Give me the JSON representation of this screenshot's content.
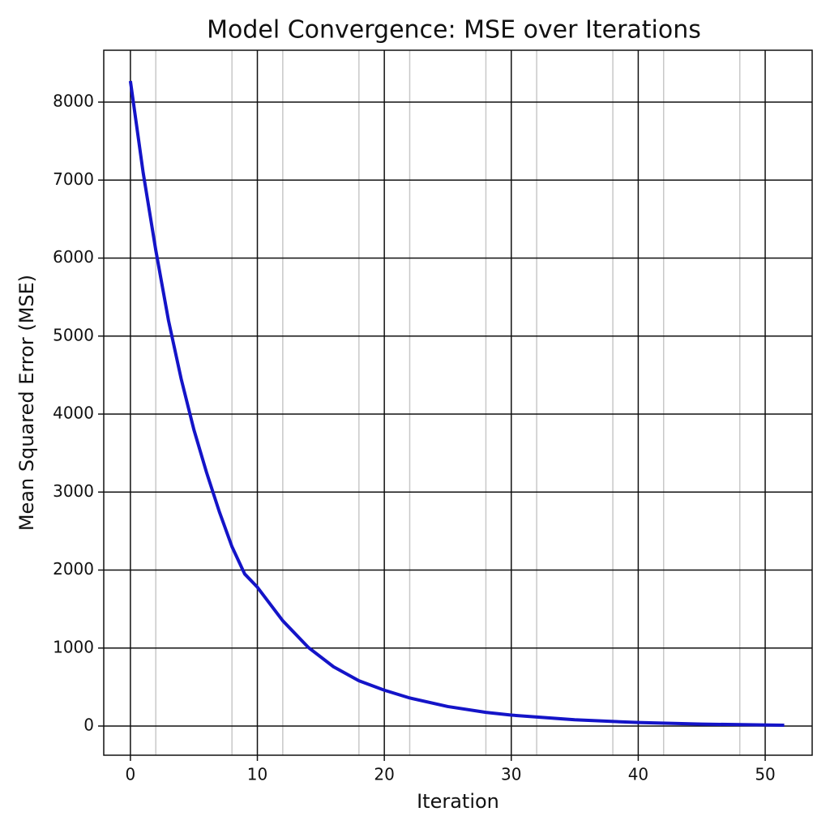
{
  "chart_data": {
    "type": "line",
    "title": "Model Convergence: MSE over Iterations",
    "xlabel": "Iteration",
    "ylabel": "Mean Squared Error (MSE)",
    "x": [
      0,
      1,
      2,
      3,
      4,
      5,
      6,
      7,
      8,
      9,
      10,
      12,
      14,
      16,
      18,
      20,
      22,
      25,
      28,
      30,
      35,
      40,
      45,
      51.5
    ],
    "series": [
      {
        "name": "MSE",
        "color": "#1414c8",
        "values": [
          8270,
          7100,
          6100,
          5200,
          4450,
          3800,
          3250,
          2750,
          2300,
          1950,
          1780,
          1350,
          1010,
          760,
          580,
          460,
          360,
          250,
          175,
          140,
          80,
          45,
          25,
          10
        ]
      }
    ],
    "xlim": [
      -2.1,
      53.7
    ],
    "ylim": [
      -374,
      8665
    ],
    "xticks": [
      0,
      10,
      20,
      30,
      40,
      50
    ],
    "yticks": [
      0,
      1000,
      2000,
      3000,
      4000,
      5000,
      6000,
      7000,
      8000
    ],
    "xminorgrid": [
      2,
      8,
      12,
      18,
      22,
      28,
      32,
      38,
      42,
      48
    ],
    "grid": true
  }
}
